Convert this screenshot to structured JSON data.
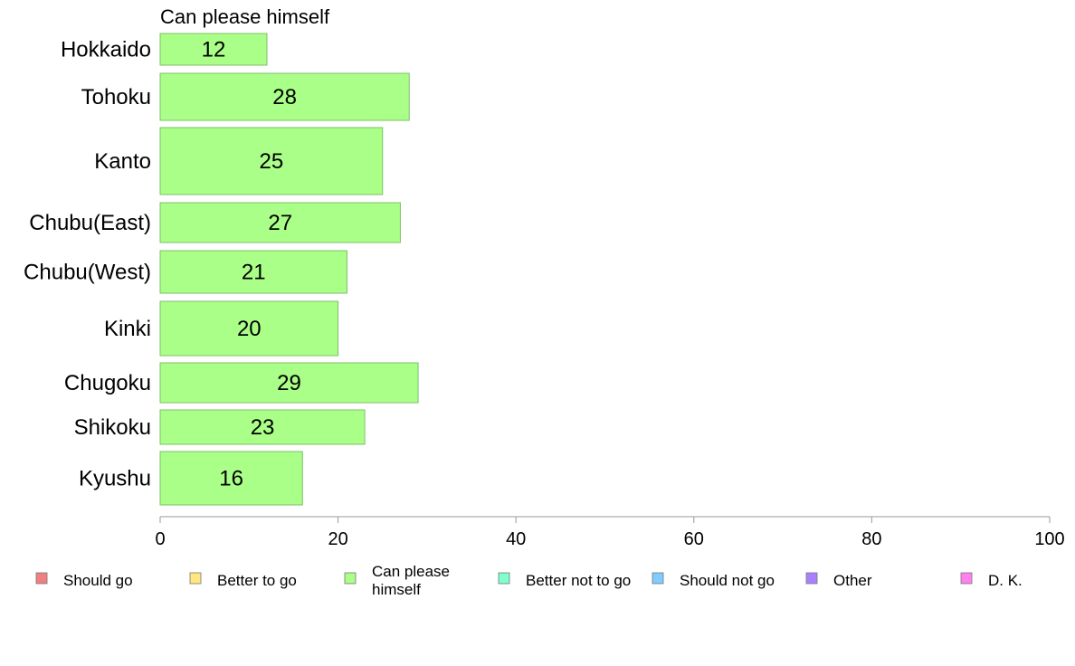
{
  "chart_data": {
    "type": "bar",
    "orientation": "horizontal",
    "title": "Can please himself",
    "categories": [
      "Hokkaido",
      "Tohoku",
      "Kanto",
      "Chubu(East)",
      "Chubu(West)",
      "Kinki",
      "Chugoku",
      "Shikoku",
      "Kyushu"
    ],
    "series": [
      {
        "name": "Can please himself",
        "color": "#aaff88",
        "values": [
          12,
          28,
          25,
          27,
          21,
          20,
          29,
          23,
          16
        ]
      }
    ],
    "data_labels": [
      "12",
      "28",
      "25",
      "27",
      "21",
      "20",
      "29",
      "23",
      "16"
    ],
    "xlim": [
      0,
      100
    ],
    "x_ticks": [
      0,
      20,
      40,
      60,
      80,
      100
    ],
    "x_tick_labels": [
      "0",
      "20",
      "40",
      "60",
      "80",
      "100"
    ],
    "grid": false,
    "legend_position": "bottom",
    "legend": [
      {
        "label": "Should go",
        "color": "#f08080"
      },
      {
        "label": "Better to go",
        "color": "#ffe680"
      },
      {
        "label": "Can please himself",
        "color": "#aaff88"
      },
      {
        "label": "Better not to go",
        "color": "#80ffcc"
      },
      {
        "label": "Should not go",
        "color": "#80ccff"
      },
      {
        "label": "Other",
        "color": "#aa80ff"
      },
      {
        "label": "D. K.",
        "color": "#ff80ee"
      }
    ]
  }
}
